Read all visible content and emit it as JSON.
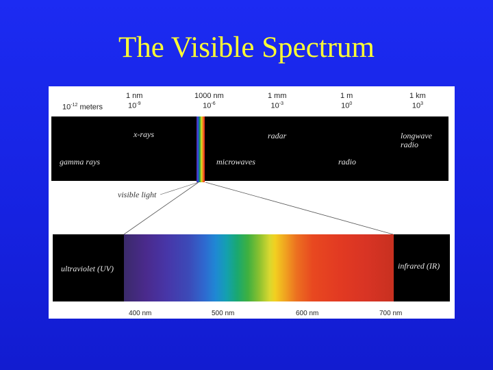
{
  "title": "The Visible Spectrum",
  "wavelength_scale": {
    "meters_label": "meters",
    "marks": [
      {
        "unit": "",
        "power": "10",
        "exp": "-12"
      },
      {
        "unit": "1 nm",
        "power": "10",
        "exp": "-9"
      },
      {
        "unit": "1000 nm",
        "power": "10",
        "exp": "-6"
      },
      {
        "unit": "1 mm",
        "power": "10",
        "exp": "-3"
      },
      {
        "unit": "1 m",
        "power": "10",
        "exp": "0"
      },
      {
        "unit": "1 km",
        "power": "10",
        "exp": "3"
      }
    ]
  },
  "bands": {
    "xrays": "x-rays",
    "gamma": "gamma rays",
    "radar": "radar",
    "microwaves": "microwaves",
    "radio": "radio",
    "longwave": "longwave",
    "longwave2": "radio",
    "visible_light": "visible light",
    "uv": "ultraviolet (UV)",
    "ir": "infrared (IR)"
  },
  "visible_ticks": [
    "400 nm",
    "500 nm",
    "600 nm",
    "700 nm"
  ],
  "colors": {
    "background": "#1622e0",
    "title": "#ffff33"
  }
}
